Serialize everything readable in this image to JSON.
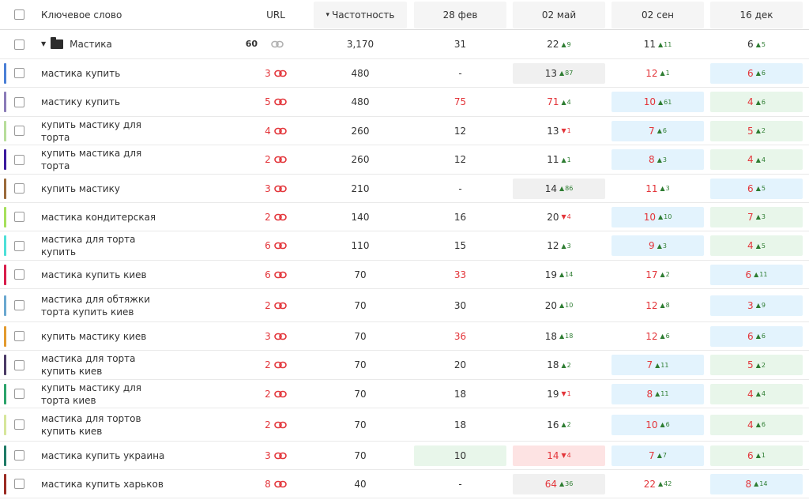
{
  "header": {
    "keyword_label": "Ключевое слово",
    "url_label": "URL",
    "freq_label": "Частотность",
    "sort_marker": "▾",
    "dates": [
      "28 фев",
      "02 май",
      "02 сен",
      "16 дек"
    ]
  },
  "group": {
    "name": "Мастика",
    "count": "60",
    "freq": "3,170",
    "d1": "31",
    "d2": "22",
    "d2_delta": "9",
    "d2_dir": "up",
    "d3": "11",
    "d3_delta": "11",
    "d3_dir": "up",
    "d4": "6",
    "d4_delta": "5",
    "d4_dir": "up"
  },
  "colors": {
    "accent_red": "#e3353a",
    "delta_up": "#2e7d32",
    "cell_blue": "#e3f3fd",
    "cell_green": "#e8f6ea",
    "cell_gray": "#f0f0f0",
    "cell_pink": "#fde3e3"
  },
  "rows": [
    {
      "bar": "#4a7fd6",
      "kw": "мастика купить",
      "url": "3",
      "freq": "480",
      "d1": {
        "v": "-",
        "red": false,
        "bg": ""
      },
      "d2": {
        "v": "13",
        "red": false,
        "delta": "87",
        "dir": "up",
        "bg": "gray"
      },
      "d3": {
        "v": "12",
        "red": true,
        "delta": "1",
        "dir": "up",
        "bg": ""
      },
      "d4": {
        "v": "6",
        "red": true,
        "delta": "6",
        "dir": "up",
        "bg": "blue"
      }
    },
    {
      "bar": "#8a7bb8",
      "kw": "мастику купить",
      "url": "5",
      "freq": "480",
      "d1": {
        "v": "75",
        "red": true,
        "bg": ""
      },
      "d2": {
        "v": "71",
        "red": true,
        "delta": "4",
        "dir": "up",
        "bg": ""
      },
      "d3": {
        "v": "10",
        "red": true,
        "delta": "61",
        "dir": "up",
        "bg": "blue"
      },
      "d4": {
        "v": "4",
        "red": true,
        "delta": "6",
        "dir": "up",
        "bg": "green"
      }
    },
    {
      "bar": "#b7dd9a",
      "kw": "купить мастику для торта",
      "url": "4",
      "freq": "260",
      "d1": {
        "v": "12",
        "red": false,
        "bg": ""
      },
      "d2": {
        "v": "13",
        "red": false,
        "delta": "1",
        "dir": "down",
        "bg": ""
      },
      "d3": {
        "v": "7",
        "red": true,
        "delta": "6",
        "dir": "up",
        "bg": "blue"
      },
      "d4": {
        "v": "5",
        "red": true,
        "delta": "2",
        "dir": "up",
        "bg": "green"
      }
    },
    {
      "bar": "#3b1a9e",
      "kw": "купить мастика для торта",
      "url": "2",
      "freq": "260",
      "d1": {
        "v": "12",
        "red": false,
        "bg": ""
      },
      "d2": {
        "v": "11",
        "red": false,
        "delta": "1",
        "dir": "up",
        "bg": ""
      },
      "d3": {
        "v": "8",
        "red": true,
        "delta": "3",
        "dir": "up",
        "bg": "blue"
      },
      "d4": {
        "v": "4",
        "red": true,
        "delta": "4",
        "dir": "up",
        "bg": "green"
      }
    },
    {
      "bar": "#9a6a3a",
      "kw": "купить мастику",
      "url": "3",
      "freq": "210",
      "d1": {
        "v": "-",
        "red": false,
        "bg": ""
      },
      "d2": {
        "v": "14",
        "red": false,
        "delta": "86",
        "dir": "up",
        "bg": "gray"
      },
      "d3": {
        "v": "11",
        "red": true,
        "delta": "3",
        "dir": "up",
        "bg": ""
      },
      "d4": {
        "v": "6",
        "red": true,
        "delta": "5",
        "dir": "up",
        "bg": "blue"
      }
    },
    {
      "bar": "#a6e05a",
      "kw": "мастика кондитерская",
      "url": "2",
      "freq": "140",
      "d1": {
        "v": "16",
        "red": false,
        "bg": ""
      },
      "d2": {
        "v": "20",
        "red": false,
        "delta": "4",
        "dir": "down",
        "bg": ""
      },
      "d3": {
        "v": "10",
        "red": true,
        "delta": "10",
        "dir": "up",
        "bg": "blue"
      },
      "d4": {
        "v": "7",
        "red": true,
        "delta": "3",
        "dir": "up",
        "bg": "green"
      }
    },
    {
      "bar": "#4de0d8",
      "kw": "мастика для торта купить",
      "url": "6",
      "freq": "110",
      "d1": {
        "v": "15",
        "red": false,
        "bg": ""
      },
      "d2": {
        "v": "12",
        "red": false,
        "delta": "3",
        "dir": "up",
        "bg": ""
      },
      "d3": {
        "v": "9",
        "red": true,
        "delta": "3",
        "dir": "up",
        "bg": "blue"
      },
      "d4": {
        "v": "4",
        "red": true,
        "delta": "5",
        "dir": "up",
        "bg": "green"
      }
    },
    {
      "bar": "#d81c4a",
      "kw": "мастика купить киев",
      "url": "6",
      "freq": "70",
      "d1": {
        "v": "33",
        "red": true,
        "bg": ""
      },
      "d2": {
        "v": "19",
        "red": false,
        "delta": "14",
        "dir": "up",
        "bg": ""
      },
      "d3": {
        "v": "17",
        "red": true,
        "delta": "2",
        "dir": "up",
        "bg": ""
      },
      "d4": {
        "v": "6",
        "red": true,
        "delta": "11",
        "dir": "up",
        "bg": "blue"
      }
    },
    {
      "bar": "#6aa8d0",
      "kw": "мастика для обтяжки торта купить киев",
      "url": "2",
      "freq": "70",
      "d1": {
        "v": "30",
        "red": false,
        "bg": ""
      },
      "d2": {
        "v": "20",
        "red": false,
        "delta": "10",
        "dir": "up",
        "bg": ""
      },
      "d3": {
        "v": "12",
        "red": true,
        "delta": "8",
        "dir": "up",
        "bg": ""
      },
      "d4": {
        "v": "3",
        "red": true,
        "delta": "9",
        "dir": "up",
        "bg": "blue"
      }
    },
    {
      "bar": "#e39a2e",
      "kw": "купить мастику киев",
      "url": "3",
      "freq": "70",
      "d1": {
        "v": "36",
        "red": true,
        "bg": ""
      },
      "d2": {
        "v": "18",
        "red": false,
        "delta": "18",
        "dir": "up",
        "bg": ""
      },
      "d3": {
        "v": "12",
        "red": true,
        "delta": "6",
        "dir": "up",
        "bg": ""
      },
      "d4": {
        "v": "6",
        "red": true,
        "delta": "6",
        "dir": "up",
        "bg": "blue"
      }
    },
    {
      "bar": "#4a3a66",
      "kw": "мастика для торта купить киев",
      "url": "2",
      "freq": "70",
      "d1": {
        "v": "20",
        "red": false,
        "bg": ""
      },
      "d2": {
        "v": "18",
        "red": false,
        "delta": "2",
        "dir": "up",
        "bg": ""
      },
      "d3": {
        "v": "7",
        "red": true,
        "delta": "11",
        "dir": "up",
        "bg": "blue"
      },
      "d4": {
        "v": "5",
        "red": true,
        "delta": "2",
        "dir": "up",
        "bg": "green"
      }
    },
    {
      "bar": "#2aa36a",
      "kw": "купить мастику для торта киев",
      "url": "2",
      "freq": "70",
      "d1": {
        "v": "18",
        "red": false,
        "bg": ""
      },
      "d2": {
        "v": "19",
        "red": false,
        "delta": "1",
        "dir": "down",
        "bg": ""
      },
      "d3": {
        "v": "8",
        "red": true,
        "delta": "11",
        "dir": "up",
        "bg": "blue"
      },
      "d4": {
        "v": "4",
        "red": true,
        "delta": "4",
        "dir": "up",
        "bg": "green"
      }
    },
    {
      "bar": "#d6e69a",
      "kw": "мастика для тортов купить киев",
      "url": "2",
      "freq": "70",
      "d1": {
        "v": "18",
        "red": false,
        "bg": ""
      },
      "d2": {
        "v": "16",
        "red": false,
        "delta": "2",
        "dir": "up",
        "bg": ""
      },
      "d3": {
        "v": "10",
        "red": true,
        "delta": "6",
        "dir": "up",
        "bg": "blue"
      },
      "d4": {
        "v": "4",
        "red": true,
        "delta": "6",
        "dir": "up",
        "bg": "green"
      }
    },
    {
      "bar": "#1e7a66",
      "kw": "мастика купить украина",
      "url": "3",
      "freq": "70",
      "d1": {
        "v": "10",
        "red": false,
        "bg": "green"
      },
      "d2": {
        "v": "14",
        "red": true,
        "delta": "4",
        "dir": "down",
        "bg": "pink"
      },
      "d3": {
        "v": "7",
        "red": true,
        "delta": "7",
        "dir": "up",
        "bg": "blue"
      },
      "d4": {
        "v": "6",
        "red": true,
        "delta": "1",
        "dir": "up",
        "bg": "green"
      }
    },
    {
      "bar": "#9a2a22",
      "kw": "мастика купить харьков",
      "url": "8",
      "freq": "40",
      "d1": {
        "v": "-",
        "red": false,
        "bg": ""
      },
      "d2": {
        "v": "64",
        "red": true,
        "delta": "36",
        "dir": "up",
        "bg": "gray"
      },
      "d3": {
        "v": "22",
        "red": true,
        "delta": "42",
        "dir": "up",
        "bg": ""
      },
      "d4": {
        "v": "8",
        "red": true,
        "delta": "14",
        "dir": "up",
        "bg": "blue"
      }
    }
  ]
}
